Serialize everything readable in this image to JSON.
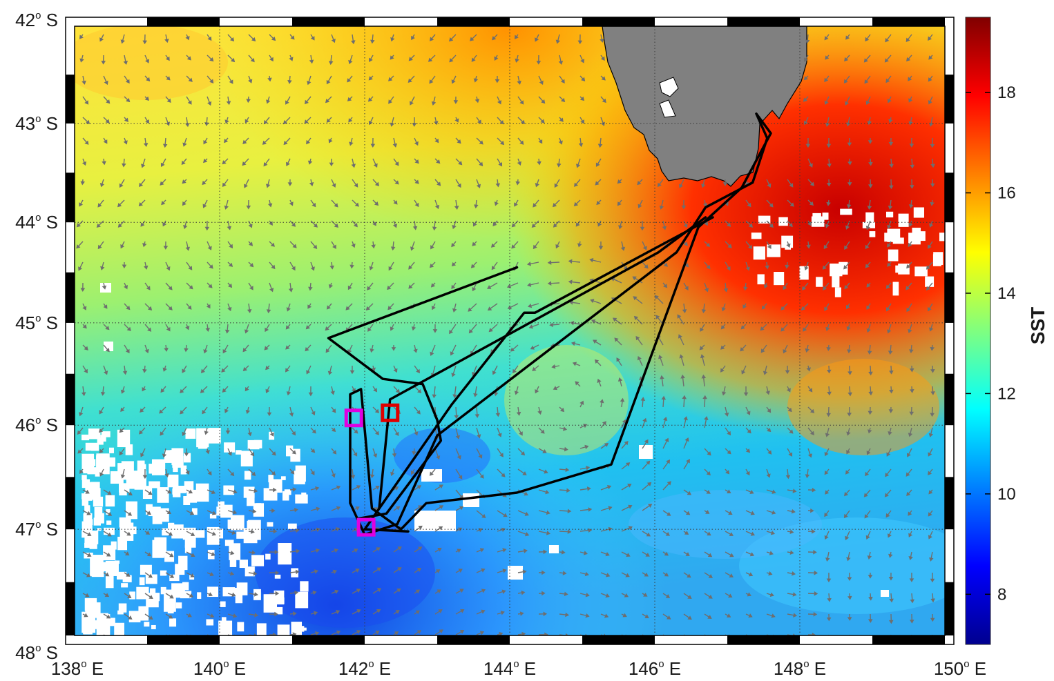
{
  "map": {
    "projection": "mercator",
    "lon_range": [
      138,
      150
    ],
    "lat_range": [
      -48,
      -42
    ],
    "lon_ticks": [
      {
        "value": 138,
        "label": "138",
        "suffix": "E"
      },
      {
        "value": 140,
        "label": "140",
        "suffix": "E"
      },
      {
        "value": 142,
        "label": "142",
        "suffix": "E"
      },
      {
        "value": 144,
        "label": "144",
        "suffix": "E"
      },
      {
        "value": 146,
        "label": "146",
        "suffix": "E"
      },
      {
        "value": 148,
        "label": "148",
        "suffix": "E"
      },
      {
        "value": 150,
        "label": "150",
        "suffix": "E"
      }
    ],
    "lat_ticks": [
      {
        "value": -42,
        "label": "42",
        "suffix": "S"
      },
      {
        "value": -43,
        "label": "43",
        "suffix": "S"
      },
      {
        "value": -44,
        "label": "44",
        "suffix": "S"
      },
      {
        "value": -45,
        "label": "45",
        "suffix": "S"
      },
      {
        "value": -46,
        "label": "46",
        "suffix": "S"
      },
      {
        "value": -47,
        "label": "47",
        "suffix": "S"
      },
      {
        "value": -48,
        "label": "48",
        "suffix": "S"
      }
    ],
    "degree_symbol": "o",
    "grid": "dotted",
    "land_color": "#808080",
    "track_color": "#000000"
  },
  "colorbar": {
    "title": "SST",
    "range": [
      7,
      19.5
    ],
    "ticks": [
      {
        "value": 8,
        "label": "8"
      },
      {
        "value": 10,
        "label": "10"
      },
      {
        "value": 12,
        "label": "12"
      },
      {
        "value": 14,
        "label": "14"
      },
      {
        "value": 16,
        "label": "16"
      },
      {
        "value": 18,
        "label": "18"
      }
    ],
    "colormap": "jet"
  },
  "markers": [
    {
      "name": "magenta-station-north",
      "lon": 141.85,
      "lat": -45.93,
      "color": "#e000e0"
    },
    {
      "name": "red-station",
      "lon": 142.35,
      "lat": -45.88,
      "color": "#e00000"
    },
    {
      "name": "magenta-station-south",
      "lon": 142.02,
      "lat": -46.98,
      "color": "#e000e0"
    }
  ],
  "ship_track": [
    [
      147.4,
      -42.9
    ],
    [
      147.55,
      -43.15
    ],
    [
      147.35,
      -43.6
    ],
    [
      146.7,
      -43.85
    ],
    [
      146.3,
      -44.3
    ],
    [
      143.0,
      -46.1
    ],
    [
      142.45,
      -46.95
    ],
    [
      142.0,
      -47.05
    ],
    [
      141.8,
      -46.75
    ],
    [
      141.8,
      -45.7
    ],
    [
      141.95,
      -45.65
    ],
    [
      142.1,
      -46.8
    ],
    [
      142.5,
      -47.0
    ],
    [
      142.85,
      -46.75
    ],
    [
      144.1,
      -46.65
    ],
    [
      145.4,
      -46.38
    ],
    [
      146.6,
      -44.05
    ],
    [
      147.2,
      -43.65
    ],
    [
      147.6,
      -43.1
    ],
    [
      147.4,
      -42.9
    ]
  ],
  "ship_track_2": [
    [
      144.1,
      -44.45
    ],
    [
      141.5,
      -45.15
    ],
    [
      142.25,
      -45.55
    ],
    [
      142.8,
      -45.6
    ],
    [
      143.0,
      -45.95
    ],
    [
      143.05,
      -46.15
    ],
    [
      142.3,
      -46.85
    ],
    [
      141.9,
      -46.9
    ]
  ],
  "ship_track_3": [
    [
      146.7,
      -43.95
    ],
    [
      146.05,
      -44.3
    ],
    [
      142.35,
      -45.75
    ],
    [
      142.2,
      -46.8
    ]
  ],
  "ship_track_4": [
    [
      142.0,
      -47.0
    ],
    [
      143.2,
      -45.8
    ],
    [
      144.2,
      -44.9
    ],
    [
      144.35,
      -44.9
    ],
    [
      146.8,
      -43.95
    ]
  ]
}
